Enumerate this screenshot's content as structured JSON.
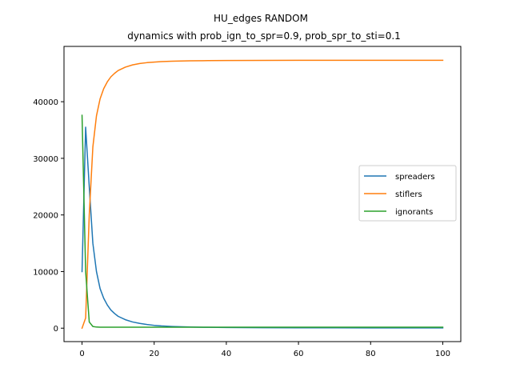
{
  "chart_data": {
    "type": "line",
    "title": "HU_edges RANDOM",
    "subtitle": "dynamics with prob_ign_to_spr=0.9, prob_spr_to_sti=0.1",
    "xlabel": "",
    "ylabel": "",
    "xlim": [
      -5,
      105
    ],
    "ylim": [
      -2370,
      49770
    ],
    "xticks": [
      0,
      20,
      40,
      60,
      80,
      100
    ],
    "yticks": [
      0,
      10000,
      20000,
      30000,
      40000
    ],
    "xtick_labels": [
      "0",
      "20",
      "40",
      "60",
      "80",
      "100"
    ],
    "ytick_labels": [
      "0",
      "10000",
      "20000",
      "30000",
      "40000"
    ],
    "grid": false,
    "legend_position": "center-right",
    "series": [
      {
        "name": "spreaders",
        "color": "#1f77b4",
        "x": [
          0,
          1,
          2,
          3,
          4,
          5,
          6,
          7,
          8,
          9,
          10,
          12,
          14,
          16,
          18,
          20,
          22,
          25,
          30,
          35,
          40,
          50,
          60,
          70,
          80,
          90,
          100
        ],
        "values": [
          10000,
          35500,
          25000,
          15000,
          10000,
          7000,
          5300,
          4100,
          3200,
          2600,
          2100,
          1500,
          1100,
          850,
          650,
          500,
          400,
          300,
          200,
          150,
          120,
          90,
          70,
          60,
          55,
          50,
          50
        ]
      },
      {
        "name": "stiflers",
        "color": "#ff7f0e",
        "x": [
          0,
          1,
          2,
          3,
          4,
          5,
          6,
          7,
          8,
          9,
          10,
          12,
          14,
          16,
          18,
          20,
          22,
          25,
          30,
          35,
          40,
          50,
          60,
          70,
          80,
          90,
          100
        ],
        "values": [
          0,
          1800,
          20000,
          32000,
          37500,
          40500,
          42300,
          43500,
          44400,
          45000,
          45500,
          46100,
          46500,
          46750,
          46900,
          47000,
          47080,
          47150,
          47220,
          47260,
          47280,
          47300,
          47310,
          47320,
          47320,
          47320,
          47320
        ]
      },
      {
        "name": "ignorants",
        "color": "#2ca02c",
        "x": [
          0,
          1,
          2,
          3,
          4,
          5,
          10,
          20,
          30,
          40,
          50,
          60,
          70,
          80,
          90,
          100
        ],
        "values": [
          37600,
          10000,
          1100,
          300,
          200,
          180,
          180,
          180,
          180,
          180,
          180,
          180,
          180,
          180,
          180,
          180
        ]
      }
    ]
  }
}
